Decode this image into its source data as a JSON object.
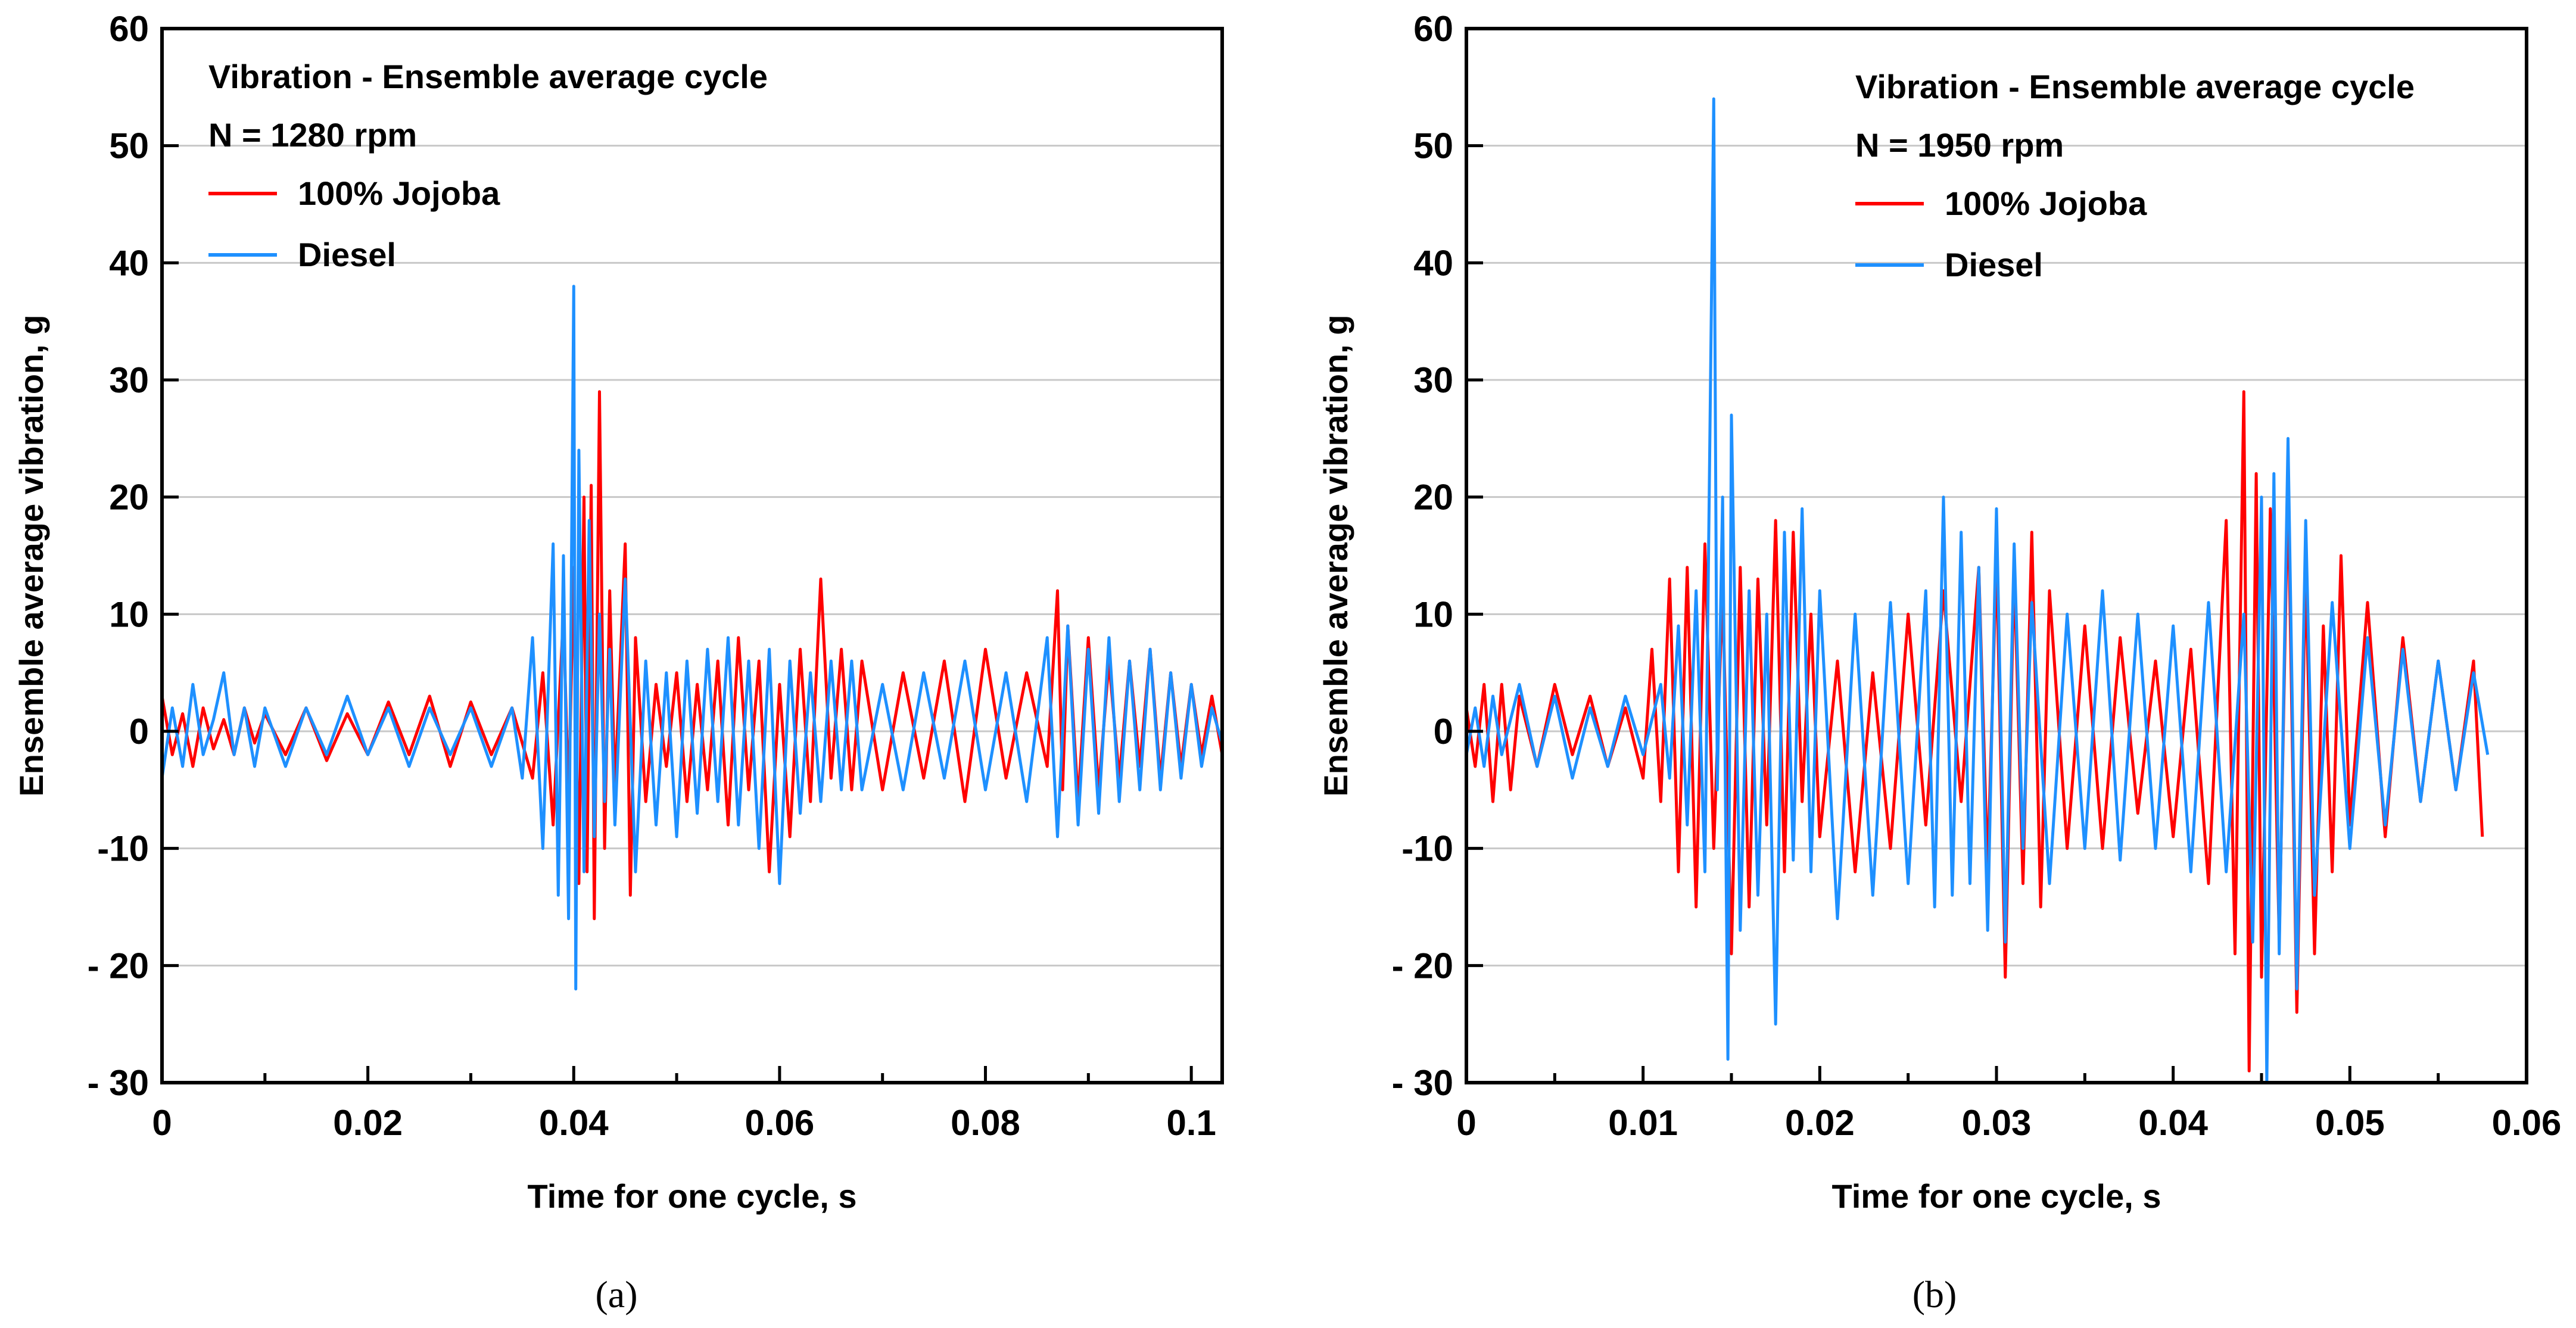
{
  "chart_data": [
    {
      "panel": "(a)",
      "type": "line",
      "title_lines": [
        "Vibration - Ensemble average cycle",
        "N = 1280 rpm"
      ],
      "xlabel": "Time for one cycle, s",
      "ylabel": "Ensemble average vibration, g",
      "xlim": [
        0,
        0.103
      ],
      "ylim": [
        -30,
        60
      ],
      "xticks": [
        0,
        0.02,
        0.04,
        0.06,
        0.08,
        0.1
      ],
      "xtick_labels": [
        "0",
        "0.02",
        "0.04",
        "0.06",
        "0.08",
        "0.1"
      ],
      "yticks": [
        -30,
        -20,
        -10,
        0,
        10,
        20,
        30,
        40,
        50,
        60
      ],
      "ytick_labels": [
        "- 30",
        "- 20",
        "-10",
        "0",
        "10",
        "20",
        "30",
        "40",
        "50",
        "60"
      ],
      "grid": "horizontal",
      "legend_position": "top-left",
      "series": [
        {
          "name": "100% Jojoba",
          "color": "#ff0000",
          "x": [
            0,
            0.001,
            0.002,
            0.003,
            0.004,
            0.005,
            0.006,
            0.007,
            0.008,
            0.009,
            0.01,
            0.012,
            0.014,
            0.016,
            0.018,
            0.02,
            0.022,
            0.024,
            0.026,
            0.028,
            0.03,
            0.032,
            0.034,
            0.036,
            0.037,
            0.038,
            0.039,
            0.0395,
            0.04,
            0.0405,
            0.041,
            0.0413,
            0.0417,
            0.042,
            0.0425,
            0.043,
            0.0435,
            0.044,
            0.045,
            0.0455,
            0.046,
            0.047,
            0.048,
            0.049,
            0.05,
            0.051,
            0.052,
            0.053,
            0.054,
            0.055,
            0.056,
            0.057,
            0.058,
            0.059,
            0.06,
            0.061,
            0.062,
            0.063,
            0.064,
            0.065,
            0.066,
            0.067,
            0.068,
            0.07,
            0.072,
            0.074,
            0.076,
            0.078,
            0.08,
            0.082,
            0.084,
            0.086,
            0.087,
            0.0875,
            0.088,
            0.089,
            0.09,
            0.091,
            0.092,
            0.093,
            0.094,
            0.095,
            0.096,
            0.097,
            0.098,
            0.099,
            0.1,
            0.101,
            0.102,
            0.103
          ],
          "y": [
            3,
            -2,
            1.5,
            -3,
            2,
            -1.5,
            1,
            -2,
            2,
            -1,
            1.5,
            -2,
            2,
            -2.5,
            1.5,
            -2,
            2.5,
            -2,
            3,
            -3,
            2.5,
            -2,
            2,
            -4,
            5,
            -8,
            10,
            -6,
            14,
            -13,
            20,
            -12,
            21,
            -16,
            29,
            -10,
            12,
            -5,
            16,
            -14,
            8,
            -6,
            4,
            -3,
            5,
            -6,
            4,
            -5,
            6,
            -8,
            8,
            -5,
            6,
            -12,
            4,
            -9,
            7,
            -6,
            13,
            -4,
            7,
            -5,
            6,
            -5,
            5,
            -4,
            6,
            -6,
            7,
            -4,
            5,
            -3,
            12,
            -5,
            9,
            -6,
            8,
            -5,
            6,
            -4,
            6,
            -3,
            7,
            -4,
            5,
            -3,
            4,
            -2,
            3,
            -2
          ]
        },
        {
          "name": "Diesel",
          "color": "#1e90ff",
          "x": [
            0,
            0.001,
            0.002,
            0.003,
            0.004,
            0.005,
            0.006,
            0.007,
            0.008,
            0.009,
            0.01,
            0.012,
            0.014,
            0.016,
            0.018,
            0.02,
            0.022,
            0.024,
            0.026,
            0.028,
            0.03,
            0.032,
            0.034,
            0.035,
            0.036,
            0.037,
            0.038,
            0.0385,
            0.039,
            0.0395,
            0.04,
            0.0402,
            0.0405,
            0.041,
            0.0415,
            0.042,
            0.0425,
            0.043,
            0.0435,
            0.044,
            0.045,
            0.046,
            0.047,
            0.048,
            0.049,
            0.05,
            0.051,
            0.052,
            0.053,
            0.054,
            0.055,
            0.056,
            0.057,
            0.058,
            0.059,
            0.06,
            0.061,
            0.062,
            0.063,
            0.064,
            0.065,
            0.066,
            0.067,
            0.068,
            0.07,
            0.072,
            0.074,
            0.076,
            0.078,
            0.08,
            0.082,
            0.084,
            0.086,
            0.087,
            0.088,
            0.089,
            0.09,
            0.091,
            0.092,
            0.093,
            0.094,
            0.095,
            0.096,
            0.097,
            0.098,
            0.099,
            0.1,
            0.101,
            0.102,
            0.103
          ],
          "y": [
            -4,
            2,
            -3,
            4,
            -2,
            1,
            5,
            -2,
            2,
            -3,
            2,
            -3,
            2,
            -2,
            3,
            -2,
            2,
            -3,
            2,
            -2,
            2,
            -3,
            2,
            -4,
            8,
            -10,
            16,
            -14,
            15,
            -16,
            38,
            -22,
            24,
            -12,
            18,
            -9,
            10,
            -6,
            7,
            -8,
            13,
            -12,
            6,
            -8,
            5,
            -9,
            6,
            -7,
            7,
            -6,
            8,
            -8,
            6,
            -10,
            7,
            -13,
            6,
            -7,
            5,
            -6,
            6,
            -5,
            6,
            -5,
            4,
            -5,
            5,
            -4,
            6,
            -5,
            5,
            -6,
            8,
            -9,
            9,
            -8,
            7,
            -7,
            8,
            -6,
            6,
            -5,
            7,
            -5,
            5,
            -4,
            4,
            -3,
            2,
            -1
          ]
        }
      ]
    },
    {
      "panel": "(b)",
      "type": "line",
      "title_lines": [
        "Vibration - Ensemble average cycle",
        "N = 1950 rpm"
      ],
      "xlabel": "Time for one cycle, s",
      "ylabel": "Ensemble average vibration, g",
      "xlim": [
        0,
        0.06
      ],
      "ylim": [
        -30,
        60
      ],
      "xticks": [
        0,
        0.01,
        0.02,
        0.03,
        0.04,
        0.05,
        0.06
      ],
      "xtick_labels": [
        "0",
        "0.01",
        "0.02",
        "0.03",
        "0.04",
        "0.05",
        "0.06"
      ],
      "yticks": [
        -30,
        -20,
        -10,
        0,
        10,
        20,
        30,
        40,
        50,
        60
      ],
      "ytick_labels": [
        "- 30",
        "- 20",
        "-10",
        "0",
        "10",
        "20",
        "30",
        "40",
        "50",
        "60"
      ],
      "grid": "horizontal",
      "legend_position": "top-right",
      "series": [
        {
          "name": "100% Jojoba",
          "color": "#ff0000",
          "x": [
            0,
            0.0005,
            0.001,
            0.0015,
            0.002,
            0.0025,
            0.003,
            0.004,
            0.005,
            0.006,
            0.007,
            0.008,
            0.009,
            0.01,
            0.0105,
            0.011,
            0.0115,
            0.012,
            0.0125,
            0.013,
            0.0135,
            0.014,
            0.0145,
            0.015,
            0.0155,
            0.016,
            0.0165,
            0.017,
            0.0175,
            0.018,
            0.0185,
            0.019,
            0.0195,
            0.02,
            0.021,
            0.022,
            0.023,
            0.024,
            0.025,
            0.026,
            0.027,
            0.028,
            0.029,
            0.0295,
            0.03,
            0.0305,
            0.031,
            0.0315,
            0.032,
            0.0325,
            0.033,
            0.034,
            0.035,
            0.036,
            0.037,
            0.038,
            0.039,
            0.04,
            0.041,
            0.042,
            0.043,
            0.0435,
            0.044,
            0.0443,
            0.0447,
            0.045,
            0.0455,
            0.046,
            0.0465,
            0.047,
            0.0475,
            0.048,
            0.0485,
            0.049,
            0.0495,
            0.05,
            0.051,
            0.052,
            0.053,
            0.054,
            0.055,
            0.056,
            0.057,
            0.0575
          ],
          "y": [
            2,
            -3,
            4,
            -6,
            4,
            -5,
            3,
            -3,
            4,
            -2,
            3,
            -3,
            2,
            -4,
            7,
            -6,
            13,
            -12,
            14,
            -15,
            16,
            -10,
            12,
            -19,
            14,
            -15,
            13,
            -8,
            18,
            -12,
            17,
            -6,
            10,
            -9,
            6,
            -12,
            5,
            -10,
            10,
            -8,
            12,
            -6,
            14,
            -12,
            15,
            -21,
            14,
            -13,
            17,
            -15,
            12,
            -10,
            9,
            -10,
            8,
            -7,
            6,
            -9,
            7,
            -13,
            18,
            -19,
            29,
            -29,
            22,
            -21,
            19,
            -18,
            21,
            -24,
            14,
            -19,
            9,
            -12,
            15,
            -8,
            11,
            -9,
            8,
            -6,
            6,
            -5,
            6,
            -9
          ]
        },
        {
          "name": "Diesel",
          "color": "#1e90ff",
          "x": [
            0,
            0.0005,
            0.001,
            0.0015,
            0.002,
            0.003,
            0.004,
            0.005,
            0.006,
            0.007,
            0.008,
            0.009,
            0.01,
            0.011,
            0.0115,
            0.012,
            0.0125,
            0.013,
            0.0135,
            0.014,
            0.0142,
            0.0145,
            0.0148,
            0.015,
            0.0155,
            0.016,
            0.0165,
            0.017,
            0.0175,
            0.018,
            0.0185,
            0.019,
            0.0195,
            0.02,
            0.021,
            0.022,
            0.023,
            0.024,
            0.025,
            0.026,
            0.0265,
            0.027,
            0.0275,
            0.028,
            0.0285,
            0.029,
            0.0295,
            0.03,
            0.0305,
            0.031,
            0.0315,
            0.032,
            0.033,
            0.034,
            0.035,
            0.036,
            0.037,
            0.038,
            0.039,
            0.04,
            0.041,
            0.042,
            0.043,
            0.044,
            0.0445,
            0.045,
            0.0453,
            0.0457,
            0.046,
            0.0465,
            0.047,
            0.0475,
            0.048,
            0.049,
            0.05,
            0.051,
            0.052,
            0.053,
            0.054,
            0.055,
            0.056,
            0.057,
            0.0578
          ],
          "y": [
            -2,
            2,
            -3,
            3,
            -2,
            4,
            -3,
            3,
            -4,
            2,
            -3,
            3,
            -2,
            4,
            -4,
            9,
            -8,
            12,
            -12,
            54,
            -5,
            20,
            -28,
            27,
            -17,
            12,
            -14,
            10,
            -25,
            17,
            -11,
            19,
            -12,
            12,
            -16,
            10,
            -14,
            11,
            -13,
            12,
            -15,
            20,
            -14,
            17,
            -13,
            14,
            -17,
            19,
            -18,
            16,
            -10,
            11,
            -13,
            10,
            -10,
            12,
            -11,
            10,
            -10,
            9,
            -12,
            11,
            -12,
            10,
            -18,
            20,
            -30,
            22,
            -19,
            25,
            -22,
            18,
            -14,
            11,
            -10,
            8,
            -8,
            7,
            -6,
            6,
            -5,
            5,
            -2
          ]
        }
      ]
    }
  ]
}
